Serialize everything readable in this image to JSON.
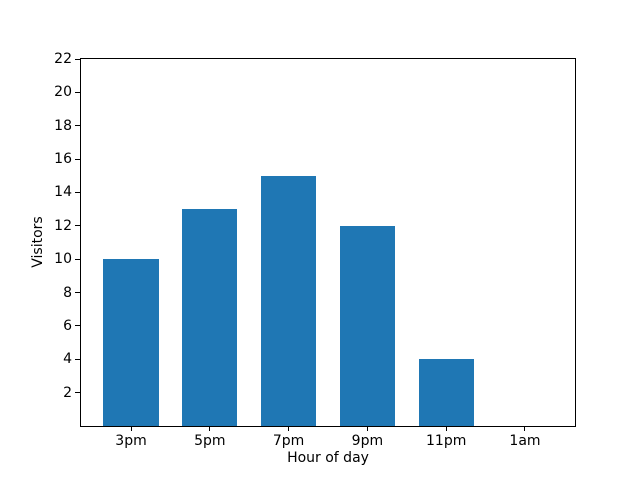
{
  "chart_data": {
    "type": "bar",
    "title": "",
    "xlabel": "Hour of day",
    "ylabel": "Visitors",
    "categories": [
      "3pm",
      "5pm",
      "7pm",
      "9pm",
      "11pm",
      "1am"
    ],
    "values": [
      10,
      13,
      15,
      12,
      4,
      0
    ],
    "ylim": [
      0,
      22
    ],
    "yticks": [
      2,
      4,
      6,
      8,
      10,
      12,
      14,
      16,
      18,
      20,
      22
    ],
    "bar_color": "#1f77b4",
    "spine_color": "#000000",
    "background": "#ffffff",
    "grid": false,
    "legend": "none"
  }
}
